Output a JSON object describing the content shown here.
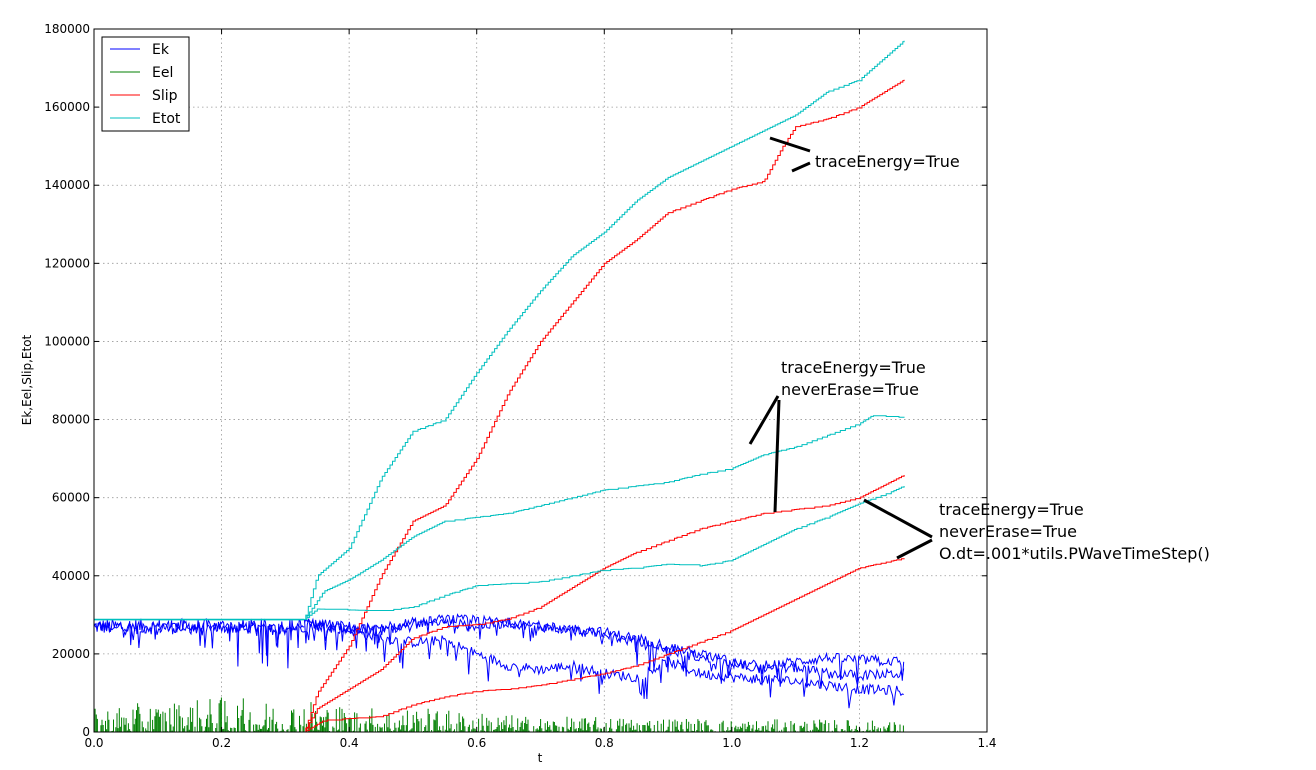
{
  "chart_data": {
    "type": "line",
    "xlabel": "t",
    "ylabel": "Ek,Eel,Slip,Etot",
    "xlim": [
      0.0,
      1.4
    ],
    "ylim": [
      0,
      180000
    ],
    "grid": true,
    "legend_position": "top-left",
    "x_ticks": [
      "0.0",
      "0.2",
      "0.4",
      "0.6",
      "0.8",
      "1.0",
      "1.2",
      "1.4"
    ],
    "y_ticks": [
      "0",
      "20000",
      "40000",
      "60000",
      "80000",
      "100000",
      "120000",
      "140000",
      "160000",
      "180000"
    ],
    "colors": {
      "Ek": "#0000ff",
      "Eel": "#007f00",
      "Slip": "#ff0000",
      "Etot": "#00bfbf"
    },
    "legend": [
      "Ek",
      "Eel",
      "Slip",
      "Etot"
    ],
    "runs": [
      {
        "label": "traceEnergy=True",
        "Etot": [
          [
            0,
            28800
          ],
          [
            0.33,
            28800
          ],
          [
            0.35,
            40000
          ],
          [
            0.4,
            47000
          ],
          [
            0.45,
            65000
          ],
          [
            0.5,
            77000
          ],
          [
            0.55,
            80000
          ],
          [
            0.6,
            92000
          ],
          [
            0.65,
            103000
          ],
          [
            0.7,
            113000
          ],
          [
            0.75,
            122000
          ],
          [
            0.8,
            128000
          ],
          [
            0.85,
            136000
          ],
          [
            0.9,
            142000
          ],
          [
            0.95,
            146000
          ],
          [
            1.0,
            150000
          ],
          [
            1.05,
            154000
          ],
          [
            1.1,
            158000
          ],
          [
            1.15,
            164000
          ],
          [
            1.2,
            167000
          ],
          [
            1.27,
            177000
          ]
        ],
        "Slip": [
          [
            0,
            0
          ],
          [
            0.33,
            0
          ],
          [
            0.35,
            10000
          ],
          [
            0.4,
            22000
          ],
          [
            0.45,
            40000
          ],
          [
            0.5,
            54000
          ],
          [
            0.55,
            58000
          ],
          [
            0.6,
            70000
          ],
          [
            0.65,
            87000
          ],
          [
            0.7,
            100000
          ],
          [
            0.75,
            110000
          ],
          [
            0.8,
            120000
          ],
          [
            0.85,
            126000
          ],
          [
            0.9,
            133000
          ],
          [
            0.95,
            136000
          ],
          [
            1.0,
            139000
          ],
          [
            1.05,
            141000
          ],
          [
            1.08,
            150000
          ],
          [
            1.1,
            155000
          ],
          [
            1.15,
            157000
          ],
          [
            1.2,
            160000
          ],
          [
            1.27,
            167000
          ]
        ],
        "Ek": [
          [
            0,
            27000
          ],
          [
            0.3,
            26500
          ],
          [
            0.35,
            27000
          ],
          [
            0.4,
            26000
          ],
          [
            0.45,
            24000
          ],
          [
            0.5,
            23000
          ],
          [
            0.55,
            23500
          ],
          [
            0.6,
            20000
          ],
          [
            0.65,
            17000
          ],
          [
            0.7,
            16000
          ],
          [
            0.75,
            17000
          ],
          [
            0.8,
            15000
          ],
          [
            0.85,
            14000
          ],
          [
            0.9,
            18000
          ],
          [
            0.95,
            15000
          ],
          [
            1.0,
            14000
          ],
          [
            1.05,
            13500
          ],
          [
            1.1,
            13000
          ],
          [
            1.15,
            12000
          ],
          [
            1.2,
            11000
          ],
          [
            1.27,
            10500
          ]
        ]
      },
      {
        "label": "traceEnergy=True neverErase=True",
        "Etot": [
          [
            0.33,
            28800
          ],
          [
            0.36,
            36000
          ],
          [
            0.4,
            39000
          ],
          [
            0.45,
            44000
          ],
          [
            0.5,
            50000
          ],
          [
            0.55,
            54000
          ],
          [
            0.6,
            55000
          ],
          [
            0.65,
            56000
          ],
          [
            0.7,
            58000
          ],
          [
            0.75,
            60000
          ],
          [
            0.8,
            62000
          ],
          [
            0.85,
            63000
          ],
          [
            0.9,
            64000
          ],
          [
            0.95,
            66000
          ],
          [
            1.0,
            67500
          ],
          [
            1.05,
            71000
          ],
          [
            1.1,
            73000
          ],
          [
            1.15,
            76000
          ],
          [
            1.2,
            79000
          ],
          [
            1.22,
            81000
          ],
          [
            1.27,
            80500
          ]
        ],
        "Slip": [
          [
            0.33,
            0
          ],
          [
            0.35,
            6000
          ],
          [
            0.4,
            11000
          ],
          [
            0.45,
            16000
          ],
          [
            0.5,
            24000
          ],
          [
            0.55,
            27000
          ],
          [
            0.6,
            27500
          ],
          [
            0.65,
            29000
          ],
          [
            0.7,
            32000
          ],
          [
            0.75,
            37000
          ],
          [
            0.8,
            42000
          ],
          [
            0.85,
            46000
          ],
          [
            0.9,
            49000
          ],
          [
            0.95,
            52000
          ],
          [
            1.0,
            54000
          ],
          [
            1.05,
            56000
          ],
          [
            1.1,
            57000
          ],
          [
            1.15,
            58000
          ],
          [
            1.2,
            60000
          ],
          [
            1.27,
            65800
          ]
        ],
        "Ek": [
          [
            0.33,
            28000
          ],
          [
            0.4,
            26000
          ],
          [
            0.45,
            27000
          ],
          [
            0.5,
            28000
          ],
          [
            0.55,
            28000
          ],
          [
            0.6,
            27000
          ],
          [
            0.65,
            28000
          ],
          [
            0.7,
            27000
          ],
          [
            0.75,
            26000
          ],
          [
            0.8,
            25000
          ],
          [
            0.85,
            23000
          ],
          [
            0.9,
            21000
          ],
          [
            0.95,
            19000
          ],
          [
            1.0,
            17500
          ],
          [
            1.05,
            17000
          ],
          [
            1.1,
            18000
          ],
          [
            1.15,
            19000
          ],
          [
            1.2,
            18500
          ],
          [
            1.27,
            18000
          ]
        ]
      },
      {
        "label": "traceEnergy=True neverErase=True O.dt=.001*utils.PWaveTimeStep()",
        "Etot": [
          [
            0.33,
            28800
          ],
          [
            0.35,
            31500
          ],
          [
            0.45,
            31000
          ],
          [
            0.5,
            32000
          ],
          [
            0.55,
            35000
          ],
          [
            0.6,
            37500
          ],
          [
            0.65,
            38000
          ],
          [
            0.7,
            38500
          ],
          [
            0.75,
            40000
          ],
          [
            0.8,
            41500
          ],
          [
            0.85,
            42000
          ],
          [
            0.9,
            43000
          ],
          [
            0.95,
            42500
          ],
          [
            1.0,
            44000
          ],
          [
            1.05,
            48000
          ],
          [
            1.1,
            52000
          ],
          [
            1.15,
            55000
          ],
          [
            1.2,
            58500
          ],
          [
            1.25,
            61500
          ],
          [
            1.27,
            63000
          ]
        ],
        "Slip": [
          [
            0.33,
            0
          ],
          [
            0.36,
            3000
          ],
          [
            0.45,
            4000
          ],
          [
            0.5,
            7000
          ],
          [
            0.55,
            9000
          ],
          [
            0.6,
            10500
          ],
          [
            0.65,
            11000
          ],
          [
            0.7,
            12000
          ],
          [
            0.75,
            13500
          ],
          [
            0.8,
            15000
          ],
          [
            0.85,
            17000
          ],
          [
            0.9,
            20000
          ],
          [
            0.95,
            23000
          ],
          [
            1.0,
            26000
          ],
          [
            1.05,
            30000
          ],
          [
            1.1,
            34000
          ],
          [
            1.15,
            38000
          ],
          [
            1.2,
            42000
          ],
          [
            1.27,
            44500
          ]
        ],
        "Ek": [
          [
            0.33,
            28000
          ],
          [
            0.4,
            27000
          ],
          [
            0.45,
            26000
          ],
          [
            0.5,
            27500
          ],
          [
            0.55,
            29000
          ],
          [
            0.6,
            28500
          ],
          [
            0.65,
            28000
          ],
          [
            0.7,
            27000
          ],
          [
            0.75,
            26500
          ],
          [
            0.8,
            25500
          ],
          [
            0.85,
            24000
          ],
          [
            0.9,
            22000
          ],
          [
            0.95,
            20000
          ],
          [
            1.0,
            18000
          ],
          [
            1.05,
            16000
          ],
          [
            1.1,
            16500
          ],
          [
            1.15,
            15000
          ],
          [
            1.2,
            14500
          ],
          [
            1.27,
            15000
          ]
        ]
      }
    ],
    "Eel_envelope": [
      [
        0,
        5000
      ],
      [
        0.1,
        6000
      ],
      [
        0.2,
        7000
      ],
      [
        0.3,
        6000
      ],
      [
        0.33,
        7000
      ],
      [
        0.4,
        5000
      ],
      [
        0.5,
        5000
      ],
      [
        0.6,
        4000
      ],
      [
        0.7,
        3000
      ],
      [
        0.8,
        3000
      ],
      [
        0.9,
        3000
      ],
      [
        1.0,
        2500
      ],
      [
        1.1,
        2500
      ],
      [
        1.2,
        2500
      ],
      [
        1.27,
        2000
      ]
    ],
    "annotations": [
      {
        "name": "annotation-1",
        "lines": [
          "traceEnergy=True"
        ]
      },
      {
        "name": "annotation-2",
        "lines": [
          "traceEnergy=True",
          "neverErase=True"
        ]
      },
      {
        "name": "annotation-3",
        "lines": [
          "traceEnergy=True",
          "neverErase=True",
          "O.dt=.001*utils.PWaveTimeStep()"
        ]
      }
    ]
  }
}
